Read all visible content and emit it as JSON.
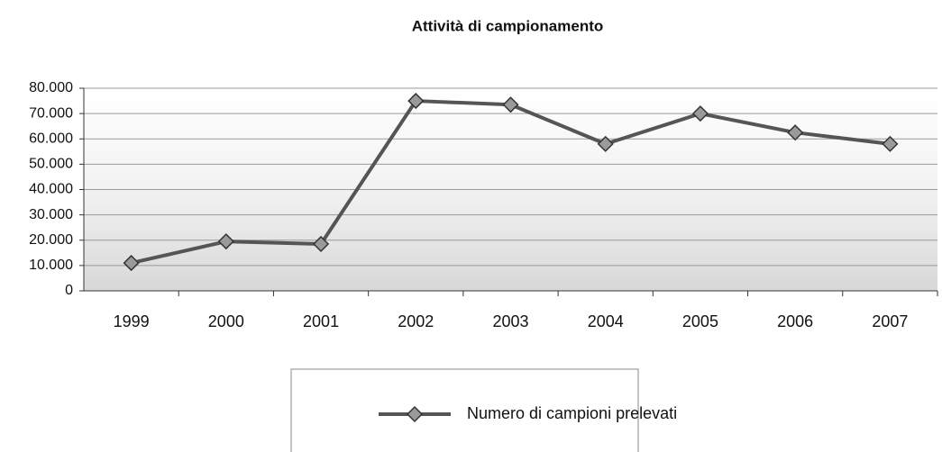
{
  "chart_data": {
    "type": "line",
    "title": "Attività di campionamento",
    "categories": [
      "1999",
      "2000",
      "2001",
      "2002",
      "2003",
      "2004",
      "2005",
      "2006",
      "2007"
    ],
    "series": [
      {
        "name": "Numero di campioni prelevati",
        "color": "#555555",
        "values": [
          11000,
          19500,
          18500,
          75000,
          73500,
          58000,
          70000,
          62500,
          58000
        ]
      }
    ],
    "ylim": [
      0,
      80000
    ],
    "yticks": [
      0,
      {
        "value": 10000,
        "label": "10.000"
      },
      {
        "value": 20000,
        "label": "20.000"
      },
      {
        "value": 30000,
        "label": "30.000"
      },
      {
        "value": 40000,
        "label": "40.000"
      },
      {
        "value": 50000,
        "label": "50.000"
      },
      {
        "value": 60000,
        "label": "60.000"
      },
      {
        "value": 70000,
        "label": "70.000"
      },
      {
        "value": 80000,
        "label": "80.000"
      }
    ],
    "grid": true,
    "legend": "bottom"
  }
}
